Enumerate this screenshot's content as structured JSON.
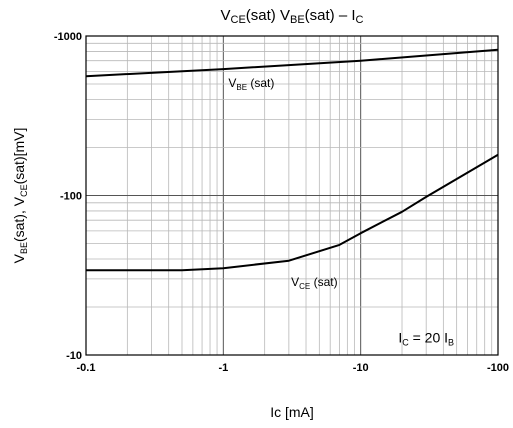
{
  "chart_data": {
    "type": "line",
    "title": {
      "parts": [
        {
          "t": "V",
          "sub": false
        },
        {
          "t": "CE",
          "sub": true
        },
        {
          "t": "(sat) V",
          "sub": false
        },
        {
          "t": "BE",
          "sub": true
        },
        {
          "t": "(sat) – I",
          "sub": false
        },
        {
          "t": "C",
          "sub": true
        }
      ]
    },
    "xlabel": "Ic [mA]",
    "ylabel": {
      "parts": [
        {
          "t": "V",
          "sub": false
        },
        {
          "t": "BE",
          "sub": true
        },
        {
          "t": "(sat), V",
          "sub": false
        },
        {
          "t": "CE",
          "sub": true
        },
        {
          "t": "(sat)[mV]",
          "sub": false
        }
      ]
    },
    "x_scale": "log",
    "y_scale": "log",
    "xlim": [
      0.1,
      100
    ],
    "ylim": [
      10,
      1000
    ],
    "x_ticks": [
      {
        "value": 0.1,
        "label": "-0.1"
      },
      {
        "value": 1,
        "label": "-1"
      },
      {
        "value": 10,
        "label": "-10"
      },
      {
        "value": 100,
        "label": "-100"
      }
    ],
    "y_ticks": [
      {
        "value": 10,
        "label": "-10"
      },
      {
        "value": 100,
        "label": "-100"
      },
      {
        "value": 1000,
        "label": "-1000"
      }
    ],
    "grid": true,
    "series": [
      {
        "name": "VBE(sat)",
        "x": [
          0.1,
          1,
          10,
          100
        ],
        "y": [
          560,
          620,
          700,
          820
        ]
      },
      {
        "name": "VCE(sat)",
        "x": [
          0.1,
          0.5,
          1,
          3,
          7,
          10,
          20,
          30,
          100
        ],
        "y": [
          34,
          34,
          35,
          39,
          49,
          58,
          79,
          98,
          180
        ]
      }
    ],
    "annotations": [
      {
        "parts": [
          {
            "t": "V",
            "sub": false
          },
          {
            "t": "BE",
            "sub": true
          },
          {
            "t": " (sat)",
            "sub": false
          }
        ],
        "x": 1.6,
        "y": 480,
        "size": "small"
      },
      {
        "parts": [
          {
            "t": "V",
            "sub": false
          },
          {
            "t": "CE",
            "sub": true
          },
          {
            "t": " (sat)",
            "sub": false
          }
        ],
        "x": 4.6,
        "y": 27,
        "size": "small"
      },
      {
        "parts": [
          {
            "t": "I",
            "sub": false
          },
          {
            "t": "C",
            "sub": true
          },
          {
            "t": " = 20 I",
            "sub": false
          },
          {
            "t": "B",
            "sub": true
          }
        ],
        "x": 30,
        "y": 12,
        "size": "big"
      }
    ],
    "line_color": "#000000",
    "major_grid_color": "#555555",
    "minor_grid_color": "#b8b8b8"
  }
}
